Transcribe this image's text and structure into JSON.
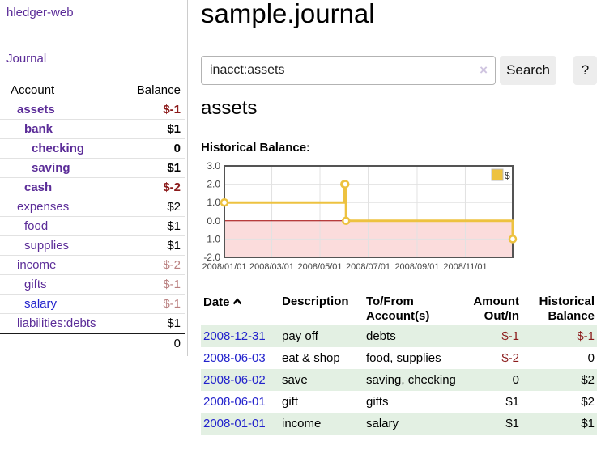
{
  "app": {
    "title": "hledger-web"
  },
  "colors": {
    "purple": "#5b2c98",
    "link_blue": "#2222cc",
    "neg_strong": "#8b1a1a",
    "neg_soft": "#b97f7f",
    "stripe": "#e3f0e3",
    "button_bg": "#ededed",
    "clear_icon": "#cfc4e0",
    "chart_line": "#edc240",
    "chart_border": "#545454",
    "chart_grid": "#e2e2e2",
    "chart_neg_fill": "#fbdcdc",
    "chart_zero_line": "#a40000"
  },
  "sidebar": {
    "journal_label": "Journal",
    "accounts_table": {
      "headers": {
        "account": "Account",
        "balance": "Balance"
      },
      "rows": [
        {
          "name": "assets",
          "balance": "$-1",
          "depth": 1,
          "bold": true,
          "neg": "strong"
        },
        {
          "name": "bank",
          "balance": "$1",
          "depth": 2,
          "bold": true,
          "neg": null
        },
        {
          "name": "checking",
          "balance": "0",
          "depth": 3,
          "bold": true,
          "neg": null
        },
        {
          "name": "saving",
          "balance": "$1",
          "depth": 3,
          "bold": true,
          "neg": null
        },
        {
          "name": "cash",
          "balance": "$-2",
          "depth": 2,
          "bold": true,
          "neg": "strong"
        },
        {
          "name": "expenses",
          "balance": "$2",
          "depth": 1,
          "bold": false,
          "neg": null
        },
        {
          "name": "food",
          "balance": "$1",
          "depth": 2,
          "bold": false,
          "neg": null
        },
        {
          "name": "supplies",
          "balance": "$1",
          "depth": 2,
          "bold": false,
          "neg": null
        },
        {
          "name": "income",
          "balance": "$-2",
          "depth": 1,
          "bold": false,
          "neg": "soft"
        },
        {
          "name": "gifts",
          "balance": "$-1",
          "depth": 2,
          "bold": false,
          "neg": "soft"
        },
        {
          "name": "salary",
          "balance": "$-1",
          "depth": 2,
          "bold": false,
          "neg": "soft",
          "link_blue": true
        },
        {
          "name": "liabilities:debts",
          "balance": "$1",
          "depth": 1,
          "bold": false,
          "neg": null
        }
      ],
      "total": "0"
    }
  },
  "main": {
    "title": "sample.journal",
    "search": {
      "value": "inacct:assets",
      "clear_icon": "×",
      "button_label": "Search",
      "help_label": "?"
    },
    "account_heading": "assets",
    "chart_label": "Historical Balance:",
    "register_table": {
      "headers": {
        "date": "Date",
        "description": "Description",
        "accounts": "To/From Account(s)",
        "amount": "Amount Out/In",
        "balance": "Historical Balance"
      },
      "sort_icon": "chevron-up",
      "rows": [
        {
          "date": "2008-12-31",
          "description": "pay off",
          "accounts": "debts",
          "amount": "$-1",
          "amount_neg": true,
          "balance": "$-1",
          "balance_neg": true,
          "stripe": true
        },
        {
          "date": "2008-06-03",
          "description": "eat & shop",
          "accounts": "food, supplies",
          "amount": "$-2",
          "amount_neg": true,
          "balance": "0",
          "balance_neg": false,
          "stripe": false
        },
        {
          "date": "2008-06-02",
          "description": "save",
          "accounts": "saving, checking",
          "amount": "0",
          "amount_neg": false,
          "balance": "$2",
          "balance_neg": false,
          "stripe": true
        },
        {
          "date": "2008-06-01",
          "description": "gift",
          "accounts": "gifts",
          "amount": "$1",
          "amount_neg": false,
          "balance": "$2",
          "balance_neg": false,
          "stripe": false
        },
        {
          "date": "2008-01-01",
          "description": "income",
          "accounts": "salary",
          "amount": "$1",
          "amount_neg": false,
          "balance": "$1",
          "balance_neg": false,
          "stripe": true
        }
      ]
    }
  },
  "chart_data": {
    "type": "line",
    "title": "Historical Balance:",
    "step": true,
    "x_range": [
      "2008-01-01",
      "2008-12-31"
    ],
    "ylim": [
      -2,
      3
    ],
    "y_ticks": [
      "3.0",
      "2.0",
      "1.0",
      "0.0",
      "-1.0",
      "-2.0"
    ],
    "x_ticks": [
      "2008/01/01",
      "2008/03/01",
      "2008/05/01",
      "2008/07/01",
      "2008/09/01",
      "2008/11/01"
    ],
    "grid": true,
    "legend": {
      "label": "$",
      "position": "top-right"
    },
    "series": [
      {
        "name": "$",
        "points": [
          {
            "date": "2008-01-01",
            "value": 1
          },
          {
            "date": "2008-06-01",
            "value": 2
          },
          {
            "date": "2008-06-02",
            "value": 2
          },
          {
            "date": "2008-06-03",
            "value": 0
          },
          {
            "date": "2008-12-31",
            "value": -1
          }
        ]
      }
    ]
  }
}
